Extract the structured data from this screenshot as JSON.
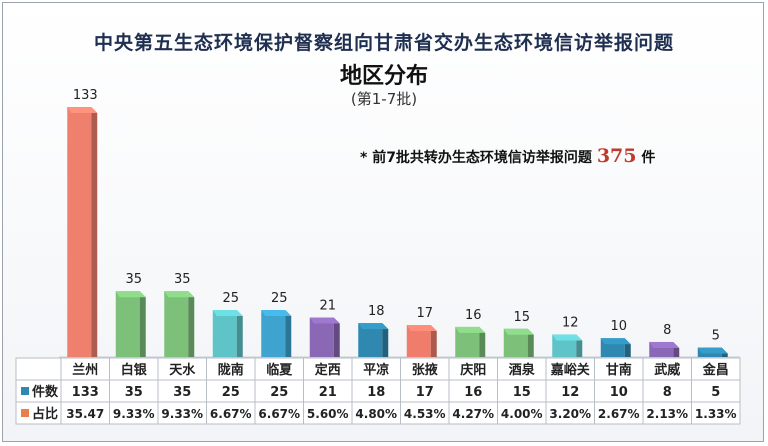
{
  "title": "中央第五生态环境保护督察组向甘肃省交办生态环境信访举报问题",
  "subtitle": "地区分布",
  "period": "(第1-7批)",
  "note": {
    "prefix": "* 前7批共转办生态环境信访举报问题",
    "total": "375",
    "suffix": "件"
  },
  "chart_data": {
    "type": "bar",
    "title": "中央第五生态环境保护督察组向甘肃省交办生态环境信访举报问题",
    "subtitle": "地区分布",
    "categories": [
      "兰州",
      "白银",
      "天水",
      "陇南",
      "临夏",
      "定西",
      "平凉",
      "张掖",
      "庆阳",
      "酒泉",
      "嘉峪关",
      "甘南",
      "武威",
      "金昌"
    ],
    "series": [
      {
        "name": "件数",
        "values": [
          133,
          35,
          35,
          25,
          25,
          21,
          18,
          17,
          16,
          15,
          12,
          10,
          8,
          5
        ]
      },
      {
        "name": "占比",
        "values": [
          "35.47",
          "9.33%",
          "9.33%",
          "6.67%",
          "6.67%",
          "5.60%",
          "4.80%",
          "4.53%",
          "4.27%",
          "4.00%",
          "3.20%",
          "2.67%",
          "2.13%",
          "1.33%"
        ]
      }
    ],
    "colors": [
      "#f0806e",
      "#7dc07a",
      "#7dc07a",
      "#5fc4c8",
      "#3fa3cf",
      "#8a68b5",
      "#2f88b0",
      "#f07c6b",
      "#7dc07a",
      "#7dc07a",
      "#5fc4c8",
      "#2f88b0",
      "#8a68b5",
      "#2f88b0"
    ],
    "series_colors": {
      "件数": "#2f88b0",
      "占比": "#e9804a"
    },
    "ylim": [
      0,
      140
    ]
  }
}
